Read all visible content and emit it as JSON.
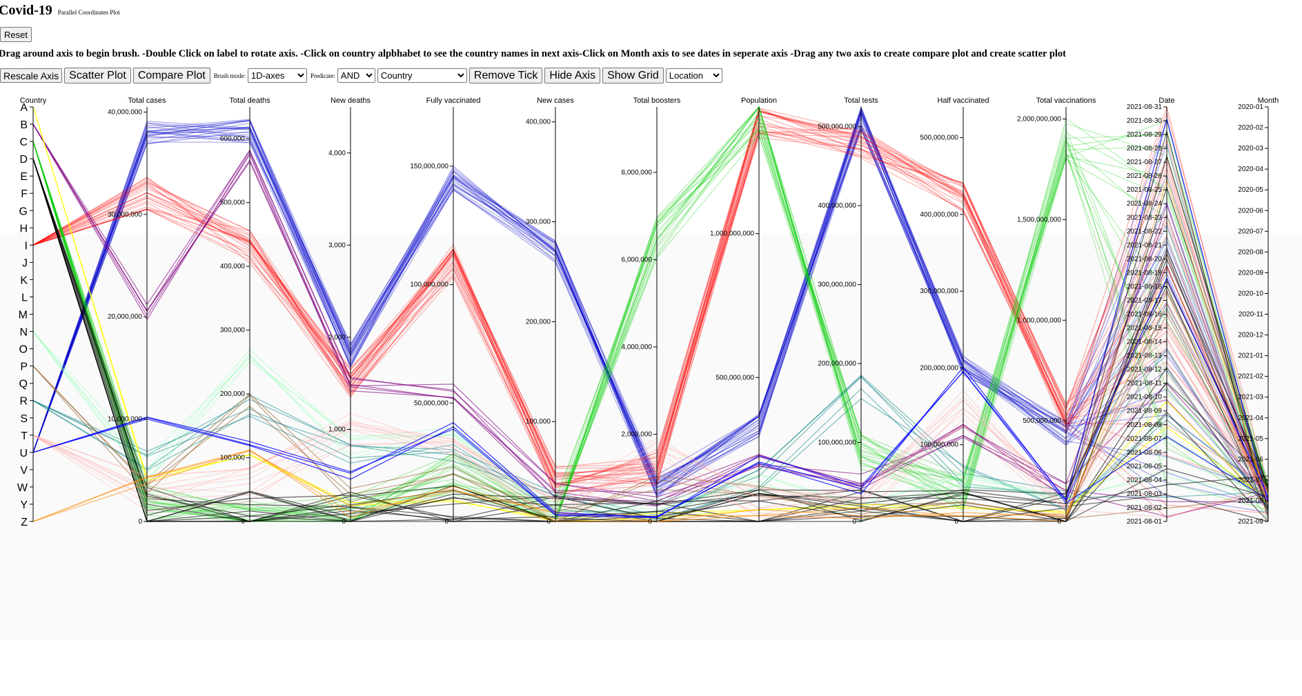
{
  "header": {
    "title": "Covid-19",
    "subtitle": "Parallel Coordinates Plot",
    "reset_label": "Reset",
    "instructions": "Drag around axis to begin brush. -Double Click on label to rotate axis. -Click on country alpbhabet to see the country names in next axis-Click on Month axis to see dates in seperate axis -Drag any two axis to create compare plot and create scatter plot"
  },
  "toolbar": {
    "rescale_label": "Rescale Axis",
    "scatter_label": "Scatter Plot",
    "compare_label": "Compare Plot",
    "brush_mode_label": "Brush mode:",
    "brush_mode_value": "1D-axes",
    "predicate_label": "Predicate:",
    "predicate_value": "AND",
    "dimension_value": "Country",
    "remove_tick_label": "Remove Tick",
    "hide_axis_label": "Hide Axis",
    "show_grid_label": "Show Grid",
    "location_value": "Location"
  },
  "chart_data": {
    "type": "parallel-coordinates",
    "grid": false,
    "axes": [
      {
        "name": "Country",
        "kind": "letters",
        "ticks": [
          "A",
          "B",
          "C",
          "D",
          "E",
          "F",
          "G",
          "H",
          "I",
          "J",
          "K",
          "L",
          "M",
          "N",
          "O",
          "P",
          "Q",
          "R",
          "S",
          "T",
          "U",
          "V",
          "W",
          "Y",
          "Z"
        ]
      },
      {
        "name": "Total cases",
        "kind": "linear",
        "domain": [
          0,
          40500000
        ],
        "ticks": [
          {
            "v": 0,
            "label": "0"
          },
          {
            "v": 10000000,
            "label": "10,000,000"
          },
          {
            "v": 20000000,
            "label": "20,000,000"
          },
          {
            "v": 30000000,
            "label": "30,000,000"
          },
          {
            "v": 40000000,
            "label": "40,000,000"
          }
        ]
      },
      {
        "name": "Total deaths",
        "kind": "linear",
        "domain": [
          0,
          650000
        ],
        "ticks": [
          {
            "v": 0,
            "label": "0"
          },
          {
            "v": 100000,
            "label": "100,000"
          },
          {
            "v": 200000,
            "label": "200,000"
          },
          {
            "v": 300000,
            "label": "300,000"
          },
          {
            "v": 400000,
            "label": "400,000"
          },
          {
            "v": 500000,
            "label": "500,000"
          },
          {
            "v": 600000,
            "label": "600,000"
          }
        ]
      },
      {
        "name": "New deaths",
        "kind": "linear",
        "domain": [
          0,
          4500
        ],
        "ticks": [
          {
            "v": 0,
            "label": "0"
          },
          {
            "v": 1000,
            "label": "1,000"
          },
          {
            "v": 2000,
            "label": "2,000"
          },
          {
            "v": 3000,
            "label": "3,000"
          },
          {
            "v": 4000,
            "label": "4,000"
          }
        ]
      },
      {
        "name": "Fully vaccinated",
        "kind": "linear",
        "domain": [
          0,
          175000000
        ],
        "ticks": [
          {
            "v": 0,
            "label": "0"
          },
          {
            "v": 50000000,
            "label": "50,000,000"
          },
          {
            "v": 100000000,
            "label": "100,000,000"
          },
          {
            "v": 150000000,
            "label": "150,000,000"
          }
        ]
      },
      {
        "name": "New cases",
        "kind": "linear",
        "domain": [
          0,
          415000
        ],
        "ticks": [
          {
            "v": 0,
            "label": "0"
          },
          {
            "v": 100000,
            "label": "100,000"
          },
          {
            "v": 200000,
            "label": "200,000"
          },
          {
            "v": 300000,
            "label": "300,000"
          },
          {
            "v": 400000,
            "label": "400,000"
          }
        ]
      },
      {
        "name": "Total boosters",
        "kind": "linear",
        "domain": [
          0,
          9500000
        ],
        "ticks": [
          {
            "v": 0,
            "label": "0"
          },
          {
            "v": 2000000,
            "label": "2,000,000"
          },
          {
            "v": 4000000,
            "label": "4,000,000"
          },
          {
            "v": 6000000,
            "label": "6,000,000"
          },
          {
            "v": 8000000,
            "label": "8,000,000"
          }
        ]
      },
      {
        "name": "Population",
        "kind": "linear",
        "domain": [
          0,
          1440000000
        ],
        "ticks": [
          {
            "v": 500000000,
            "label": "500,000,000"
          },
          {
            "v": 1000000000,
            "label": "1,000,000,000"
          }
        ]
      },
      {
        "name": "Total tests",
        "kind": "linear",
        "domain": [
          0,
          525000000
        ],
        "ticks": [
          {
            "v": 0,
            "label": "0"
          },
          {
            "v": 100000000,
            "label": "100,000,000"
          },
          {
            "v": 200000000,
            "label": "200,000,000"
          },
          {
            "v": 300000000,
            "label": "300,000,000"
          },
          {
            "v": 400000000,
            "label": "400,000,000"
          },
          {
            "v": 500000000,
            "label": "500,000,000"
          }
        ]
      },
      {
        "name": "Half vaccinated",
        "kind": "linear",
        "domain": [
          0,
          540000000
        ],
        "ticks": [
          {
            "v": 0,
            "label": "0"
          },
          {
            "v": 100000000,
            "label": "100,000,000"
          },
          {
            "v": 200000000,
            "label": "200,000,000"
          },
          {
            "v": 300000000,
            "label": "300,000,000"
          },
          {
            "v": 400000000,
            "label": "400,000,000"
          },
          {
            "v": 500000000,
            "label": "500,000,000"
          }
        ]
      },
      {
        "name": "Total vaccinations",
        "kind": "linear",
        "domain": [
          0,
          2060000000
        ],
        "ticks": [
          {
            "v": 0,
            "label": "0"
          },
          {
            "v": 500000000,
            "label": "500,000,000"
          },
          {
            "v": 1000000000,
            "label": "1,000,000,000"
          },
          {
            "v": 1500000000,
            "label": "1,500,000,000"
          },
          {
            "v": 2000000000,
            "label": "2,000,000,000"
          }
        ]
      },
      {
        "name": "Date",
        "kind": "dates",
        "ticks": [
          "2021-08-31",
          "2021-08-30",
          "2021-08-29",
          "2021-08-28",
          "2021-08-27",
          "2021-08-26",
          "2021-08-25",
          "2021-08-24",
          "2021-08-23",
          "2021-08-22",
          "2021-08-21",
          "2021-08-20",
          "2021-08-19",
          "2021-08-18",
          "2021-08-17",
          "2021-08-16",
          "2021-08-15",
          "2021-08-14",
          "2021-08-13",
          "2021-08-12",
          "2021-08-11",
          "2021-08-10",
          "2021-08-09",
          "2021-08-08",
          "2021-08-07",
          "2021-08-06",
          "2021-08-05",
          "2021-08-04",
          "2021-08-03",
          "2021-08-02",
          "2021-08-01"
        ]
      },
      {
        "name": "Month",
        "kind": "months",
        "ticks": [
          "2020-01",
          "2020-02",
          "2020-03",
          "2020-04",
          "2020-05",
          "2020-06",
          "2020-07",
          "2020-08",
          "2020-09",
          "2020-10",
          "2020-11",
          "2020-12",
          "2021-01",
          "2021-02",
          "2021-03",
          "2021-04",
          "2021-05",
          "2021-06",
          "2021-07",
          "2021-08",
          "2021-09"
        ]
      }
    ],
    "series": [
      {
        "color": "#0000cc",
        "copies": 22,
        "spread": 0.03,
        "opacity": 0.35,
        "values": [
          "U",
          38000000,
          612000,
          1800,
          145000000,
          270000,
          800000,
          330000000,
          510000000,
          200000000,
          440000000,
          0.5,
          19
        ]
      },
      {
        "color": "#ff0000",
        "copies": 24,
        "spread": 0.04,
        "opacity": 0.3,
        "values": [
          "I",
          32000000,
          430000,
          1500,
          110000000,
          40000,
          1200000,
          1380000000,
          480000000,
          420000000,
          520000000,
          0.5,
          19
        ]
      },
      {
        "color": "#00cc00",
        "copies": 20,
        "spread": 0.05,
        "opacity": 0.3,
        "values": [
          "C",
          2000000,
          5000,
          100,
          20000000,
          3000,
          6500000,
          1400000000,
          90000000,
          40000000,
          1900000000,
          0.5,
          19
        ]
      },
      {
        "color": "#800080",
        "copies": 6,
        "spread": 0.02,
        "opacity": 0.6,
        "values": [
          "B",
          20500000,
          575000,
          1500,
          55000000,
          30000,
          500000,
          210000000,
          50000000,
          120000000,
          150000000,
          0.5,
          19
        ]
      },
      {
        "color": "#008080",
        "copies": 5,
        "spread": 0.03,
        "opacity": 0.5,
        "values": [
          "R",
          6000000,
          180000,
          700,
          30000000,
          20000,
          200000,
          145000000,
          170000000,
          60000000,
          90000000,
          0.5,
          19
        ]
      },
      {
        "color": "#99ffbb",
        "copies": 5,
        "spread": 0.03,
        "opacity": 0.5,
        "values": [
          "N",
          5000000,
          250000,
          800,
          40000000,
          15000,
          300000,
          130000000,
          10000000,
          50000000,
          80000000,
          0.5,
          19
        ]
      },
      {
        "color": "#996633",
        "copies": 3,
        "spread": 0.02,
        "opacity": 0.6,
        "values": [
          "P",
          3000000,
          190000,
          300,
          20000000,
          5000,
          900000,
          100000000,
          15000000,
          30000000,
          40000000,
          0.5,
          19
        ]
      },
      {
        "color": "#ffff00",
        "copies": 2,
        "spread": 0.01,
        "opacity": 0.8,
        "values": [
          "A",
          4000000,
          100000,
          200,
          10000000,
          4000,
          100000,
          40000000,
          20000000,
          20000000,
          30000000,
          0.5,
          19
        ]
      },
      {
        "color": "#000000",
        "copies": 14,
        "spread": 0.06,
        "opacity": 0.6,
        "values": [
          "D",
          1000000,
          20000,
          50,
          5000000,
          1000,
          50000,
          30000000,
          10000000,
          10000000,
          20000000,
          0.5,
          19
        ]
      },
      {
        "color": "#ffaaaa",
        "copies": 10,
        "spread": 0.05,
        "opacity": 0.4,
        "values": [
          "T",
          3000000,
          60000,
          1000,
          30000000,
          5000,
          1500000,
          60000000,
          30000000,
          150000000,
          50000000,
          0.5,
          19
        ]
      },
      {
        "color": "#ff8800",
        "copies": 3,
        "spread": 0.02,
        "opacity": 0.6,
        "values": [
          "Z",
          4500000,
          100000,
          100,
          15000000,
          2000,
          20000,
          20000000,
          10000000,
          10000000,
          20000000,
          0.5,
          19
        ]
      },
      {
        "color": "#0000ff",
        "copies": 3,
        "spread": 0.01,
        "opacity": 0.8,
        "values": [
          "U",
          10000000,
          120000,
          500,
          40000000,
          10000,
          50000,
          215000000,
          40000000,
          200000000,
          90000000,
          0.5,
          19
        ]
      }
    ]
  }
}
